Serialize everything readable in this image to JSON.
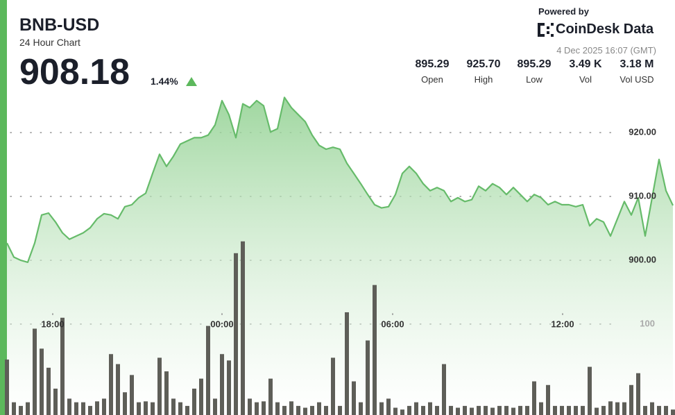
{
  "header": {
    "symbol": "BNB-USD",
    "subtitle": "24 Hour Chart",
    "price": 908.18,
    "change": "1.44%",
    "powered_by": "Powered by",
    "brand": "CoinDesk Data",
    "timestamp": "4 Dec 2025 16:07 (GMT)"
  },
  "stats": [
    {
      "value": "895.29",
      "label": "Open"
    },
    {
      "value": "925.70",
      "label": "High"
    },
    {
      "value": "895.29",
      "label": "Low"
    },
    {
      "value": "3.49 K",
      "label": "Vol"
    },
    {
      "value": "3.18 M",
      "label": "Vol USD"
    }
  ],
  "chart_data": {
    "type": "area",
    "xlim": [
      0,
      96
    ],
    "xticks": [
      {
        "value": 6.6,
        "label": "18:00"
      },
      {
        "value": 31,
        "label": "00:00"
      },
      {
        "value": 55.6,
        "label": "06:00"
      },
      {
        "value": 80.1,
        "label": "12:00"
      }
    ],
    "ylim": [
      876,
      930
    ],
    "yticks": [
      {
        "value": 900,
        "label": "900.00"
      },
      {
        "value": 910,
        "label": "910.00"
      },
      {
        "value": 920,
        "label": "920.00"
      }
    ],
    "y2lim": [
      0,
      200
    ],
    "y2ticks": [
      100
    ],
    "grid": true,
    "series": [
      {
        "color": "#66bb6a",
        "values": [
          902.7,
          900.5,
          900,
          899.7,
          902.7,
          907.1,
          907.4,
          906,
          904.3,
          903.3,
          903.8,
          904.3,
          905.1,
          906.5,
          907.3,
          907.1,
          906.5,
          908.4,
          908.7,
          909.8,
          910.5,
          913.6,
          916.6,
          914.7,
          916.3,
          918.2,
          918.7,
          919.2,
          919.2,
          919.6,
          921.2,
          925,
          922.8,
          919.2,
          924.5,
          923.9,
          925,
          924.2,
          920.1,
          920.6,
          925.5,
          923.9,
          922.8,
          921.7,
          919.6,
          918,
          917.4,
          917.7,
          917.4,
          915.2,
          913.6,
          912,
          910.3,
          908.7,
          908.2,
          908.4,
          910.3,
          913.6,
          914.7,
          913.6,
          912,
          910.9,
          911.4,
          910.9,
          909.2,
          909.8,
          909.2,
          909.5,
          911.6,
          910.9,
          912,
          911.4,
          910.3,
          911.4,
          910.3,
          909.2,
          910.3,
          909.8,
          908.7,
          909.2,
          908.7,
          908.7,
          908.4,
          908.7,
          905.4,
          906.5,
          906,
          903.8,
          906.5,
          909.2,
          907.1,
          909.8,
          903.8,
          909.8,
          915.8,
          910.9,
          908.6
        ]
      },
      {
        "type": "bar",
        "axis": "y2",
        "color": "#5e5e58",
        "values": [
          61,
          14,
          10,
          14,
          95,
          73,
          52,
          29,
          107,
          18,
          14,
          14,
          10,
          15,
          18,
          67,
          56,
          25,
          44,
          14,
          15,
          14,
          63,
          48,
          18,
          14,
          10,
          29,
          40,
          98,
          18,
          67,
          60,
          178,
          191,
          18,
          14,
          15,
          40,
          14,
          10,
          15,
          10,
          8,
          10,
          14,
          10,
          63,
          10,
          113,
          37,
          14,
          82,
          143,
          14,
          18,
          8,
          6,
          10,
          14,
          10,
          14,
          10,
          56,
          10,
          8,
          10,
          8,
          10,
          10,
          8,
          10,
          10,
          8,
          10,
          10,
          37,
          14,
          33,
          10,
          10,
          10,
          10,
          10,
          53,
          8,
          10,
          15,
          14,
          14,
          33,
          46,
          10,
          14,
          10,
          10,
          6
        ]
      }
    ]
  }
}
